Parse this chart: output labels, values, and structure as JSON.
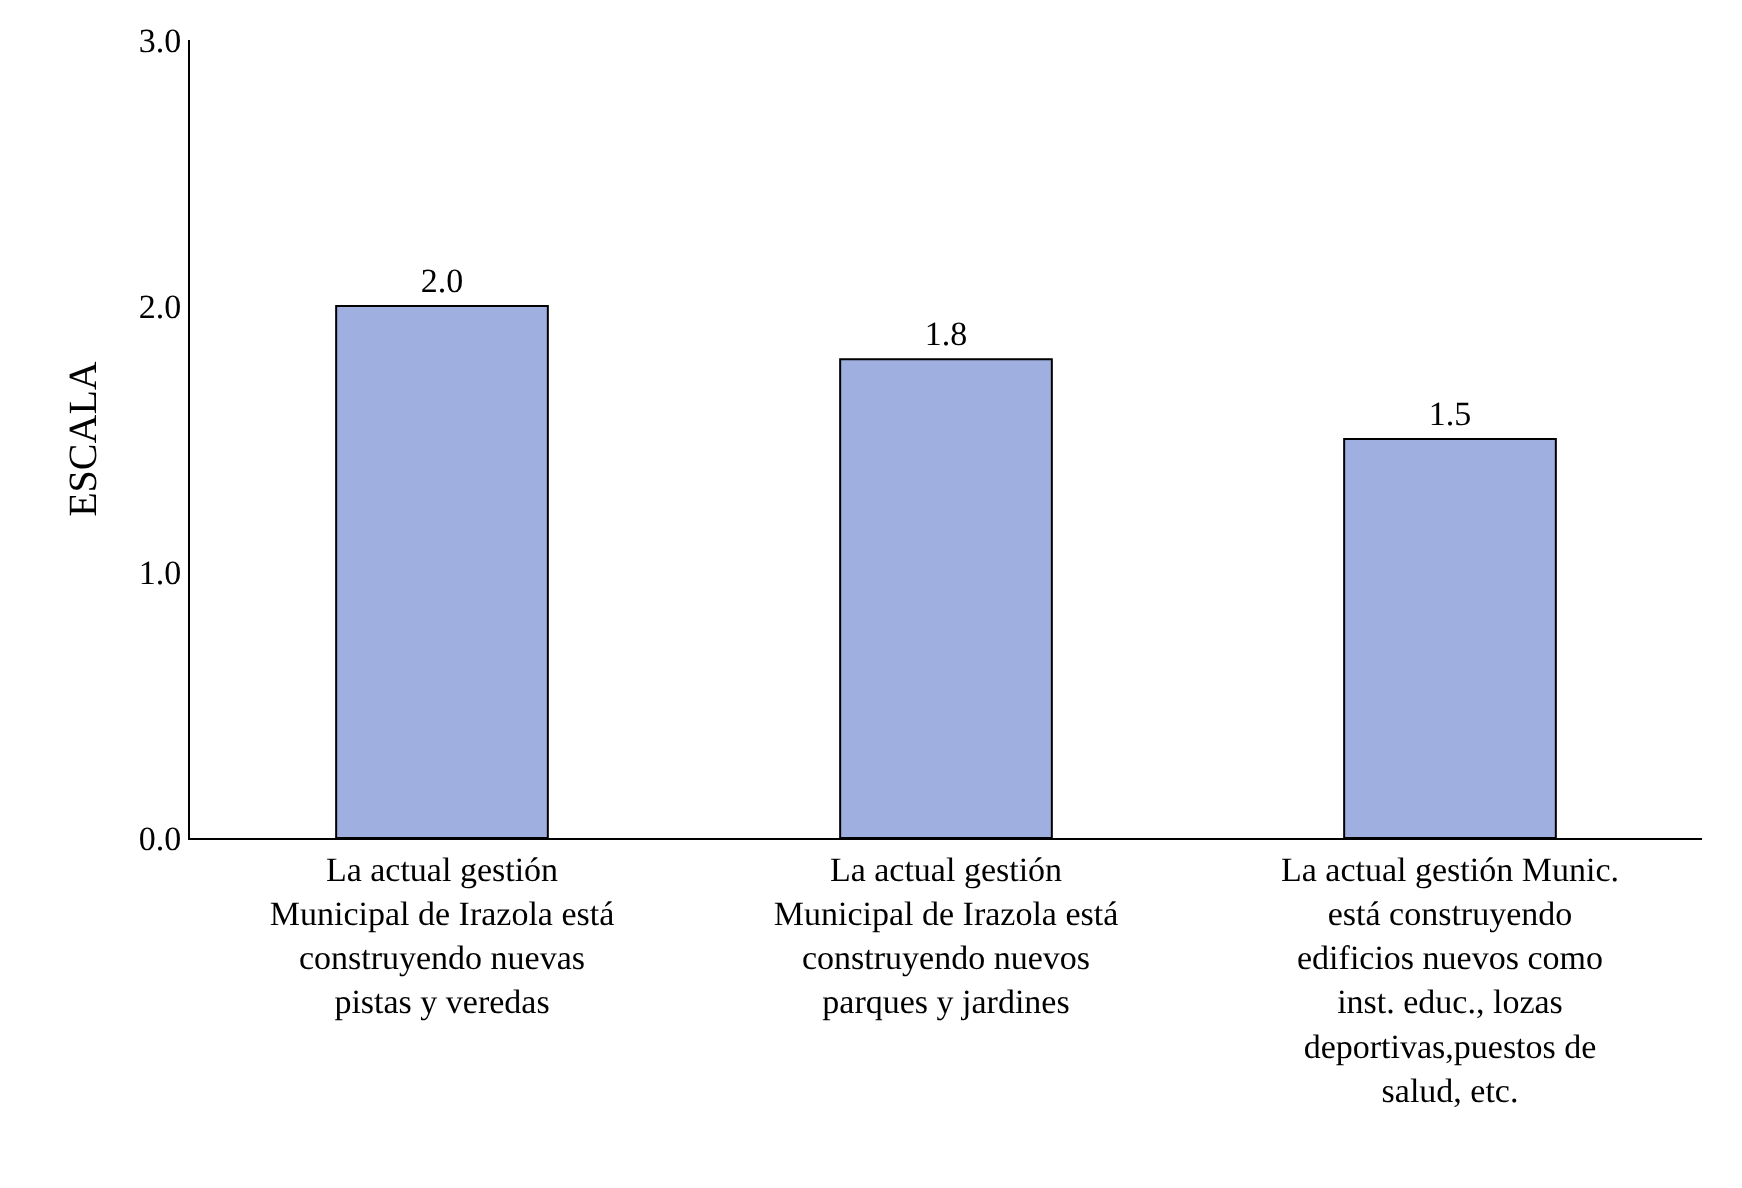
{
  "chart_data": {
    "type": "bar",
    "ylabel": "ESCALA",
    "categories": [
      "La actual gestión Municipal de Irazola está construyendo nuevas pistas y veredas",
      "La actual gestión Municipal de Irazola está construyendo nuevos parques y jardines",
      "La actual gestión Munic. está construyendo edificios nuevos como inst. educ., lozas deportivas,puestos de salud, etc."
    ],
    "values": [
      2.0,
      1.8,
      1.5
    ],
    "value_labels": [
      "2.0",
      "1.8",
      "1.5"
    ],
    "color": "#9fb0e0",
    "grid": false,
    "ylim": [
      0,
      3
    ],
    "yticks": [
      {
        "value": 0,
        "label": "0.0"
      },
      {
        "value": 1,
        "label": "1.0"
      },
      {
        "value": 2,
        "label": "2.0"
      },
      {
        "value": 3,
        "label": "3.0"
      }
    ],
    "legend": false
  }
}
